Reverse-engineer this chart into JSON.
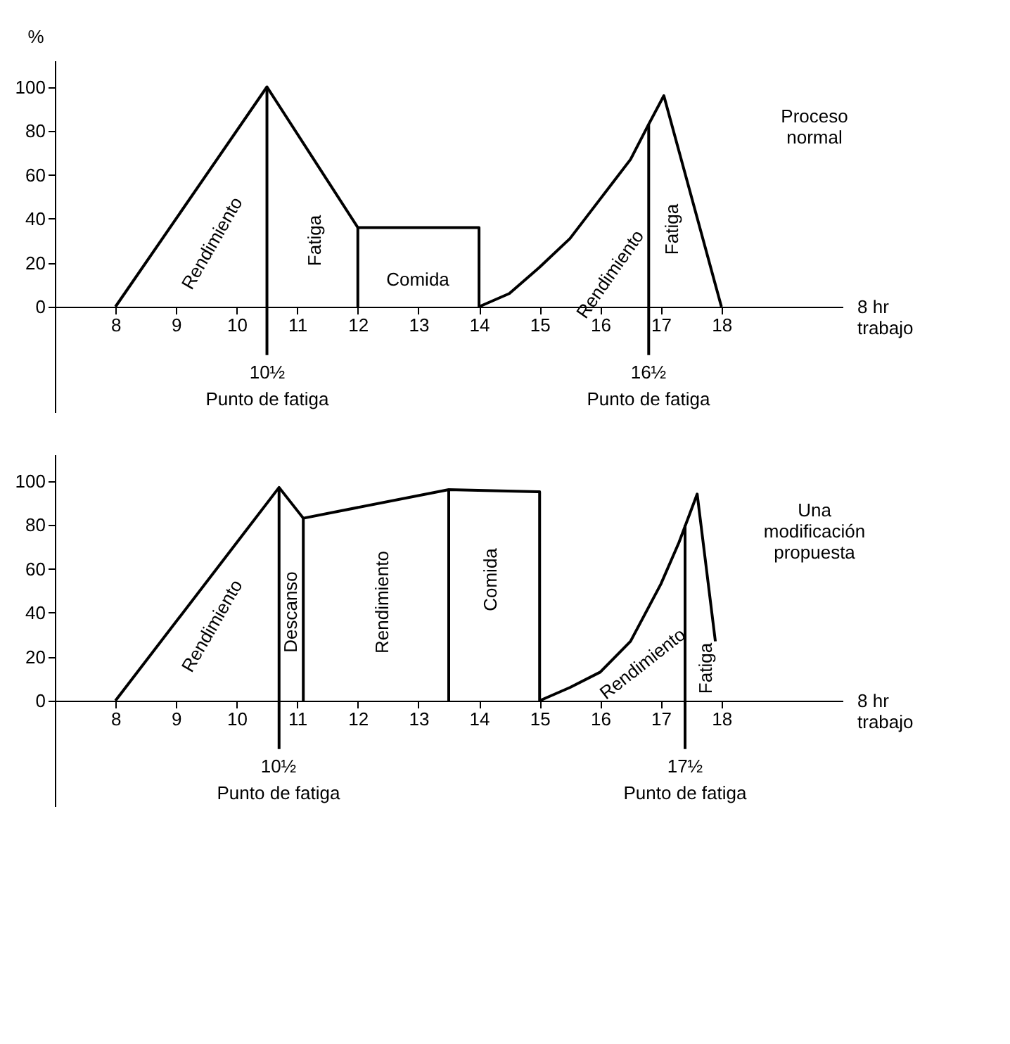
{
  "chart_data": [
    {
      "type": "line",
      "ylabel": "%",
      "xlabel": "8 hr trabajo",
      "xlim": [
        7,
        20
      ],
      "xticks": [
        8,
        9,
        10,
        11,
        12,
        13,
        14,
        15,
        16,
        17,
        18
      ],
      "ylim": [
        -48,
        112
      ],
      "yticks": [
        0,
        20,
        40,
        60,
        80,
        100
      ],
      "series": [
        {
          "color": "#000000",
          "x": [
            8,
            10.5,
            12,
            14,
            14,
            14.5,
            15,
            15.5,
            16,
            16.5,
            16.8,
            17.05,
            18
          ],
          "values": [
            0,
            100,
            36,
            36,
            0,
            6,
            18,
            31,
            49,
            67,
            83,
            96,
            0
          ]
        },
        {
          "color": "#000000",
          "x": [
            12,
            12
          ],
          "values": [
            0,
            36
          ]
        },
        {
          "color": "#000000",
          "x": [
            10.5,
            10.5
          ],
          "values": [
            100,
            -22
          ]
        },
        {
          "color": "#000000",
          "x": [
            16.8,
            16.8
          ],
          "values": [
            83,
            -22
          ]
        }
      ],
      "annotations": [
        "Rendimiento",
        "Fatiga",
        "Comida",
        "Rendimiento",
        "Fatiga",
        "10½",
        "Punto de fatiga",
        "16½",
        "Punto de fatiga",
        "Proceso normal"
      ]
    },
    {
      "type": "line",
      "xlabel": "8 hr trabajo",
      "xlim": [
        7,
        20
      ],
      "xticks": [
        8,
        9,
        10,
        11,
        12,
        13,
        14,
        15,
        16,
        17,
        18
      ],
      "ylim": [
        -48,
        112
      ],
      "yticks": [
        0,
        20,
        40,
        60,
        80,
        100
      ],
      "series": [
        {
          "color": "#000000",
          "x": [
            8,
            10.7,
            11.1,
            13.5,
            15,
            15,
            15.5,
            16,
            16.5,
            17,
            17.3,
            17.6,
            17.9
          ],
          "values": [
            0,
            97,
            83,
            96,
            95,
            0,
            6,
            13,
            27,
            53,
            72,
            94,
            27
          ]
        },
        {
          "color": "#000000",
          "x": [
            11.1,
            11.1
          ],
          "values": [
            0,
            83
          ]
        },
        {
          "color": "#000000",
          "x": [
            13.5,
            13.5
          ],
          "values": [
            0,
            96
          ]
        },
        {
          "color": "#000000",
          "x": [
            10.7,
            10.7
          ],
          "values": [
            97,
            -22
          ]
        },
        {
          "color": "#000000",
          "x": [
            17.4,
            17.4
          ],
          "values": [
            80,
            -22
          ]
        }
      ],
      "annotations": [
        "Rendimiento",
        "Descanso",
        "Rendimiento",
        "Comida",
        "Rendimiento",
        "Fatiga",
        "10½",
        "Punto de fatiga",
        "17½",
        "Punto de fatiga",
        "Una modificación propuesta"
      ]
    }
  ]
}
